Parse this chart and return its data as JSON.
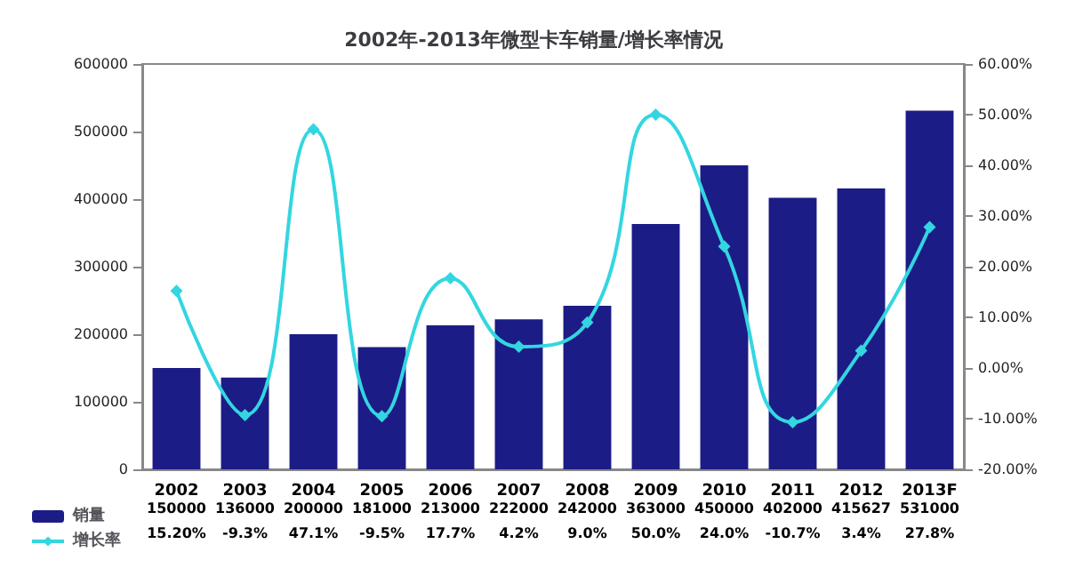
{
  "chart_data": {
    "type": "bar",
    "title": "2002年-2013年微型卡车销量/增长率情况",
    "categories": [
      "2002",
      "2003",
      "2004",
      "2005",
      "2006",
      "2007",
      "2008",
      "2009",
      "2010",
      "2011",
      "2012",
      "2013F"
    ],
    "series": [
      {
        "name": "销量",
        "color": "#1c1c86",
        "values": [
          150000,
          136000,
          200000,
          181000,
          213000,
          222000,
          242000,
          363000,
          450000,
          402000,
          415627,
          531000
        ],
        "value_labels": [
          "150000",
          "136000",
          "200000",
          "181000",
          "213000",
          "222000",
          "242000",
          "363000",
          "450000",
          "402000",
          "415627",
          "531000"
        ]
      },
      {
        "name": "增长率",
        "type": "line",
        "axis": "y2",
        "color": "#33d6e0",
        "marker": "diamond",
        "values": [
          15.2,
          -9.3,
          47.1,
          -9.5,
          17.7,
          4.2,
          9.0,
          50.0,
          24.0,
          -10.7,
          3.4,
          27.8
        ],
        "value_labels": [
          "15.20%",
          "-9.3%",
          "47.1%",
          "-9.5%",
          "17.7%",
          "4.2%",
          "9.0%",
          "50.0%",
          "24.0%",
          "-10.7%",
          "3.4%",
          "27.8%"
        ]
      }
    ],
    "ylim": [
      0,
      600000
    ],
    "yticks": [
      0,
      100000,
      200000,
      300000,
      400000,
      500000,
      600000
    ],
    "y2lim": [
      -20,
      60
    ],
    "y2ticks": [
      {
        "value": -20,
        "label": "-20.00%"
      },
      {
        "value": -10,
        "label": "-10.00%"
      },
      {
        "value": 0,
        "label": "0.00%"
      },
      {
        "value": 10,
        "label": "10.00%"
      },
      {
        "value": 20,
        "label": "20.00%"
      },
      {
        "value": 30,
        "label": "30.00%"
      },
      {
        "value": 40,
        "label": "40.00%"
      },
      {
        "value": 50,
        "label": "50.00%"
      },
      {
        "value": 60,
        "label": "60.00%"
      }
    ],
    "legend": "bottom left",
    "grid": false
  }
}
